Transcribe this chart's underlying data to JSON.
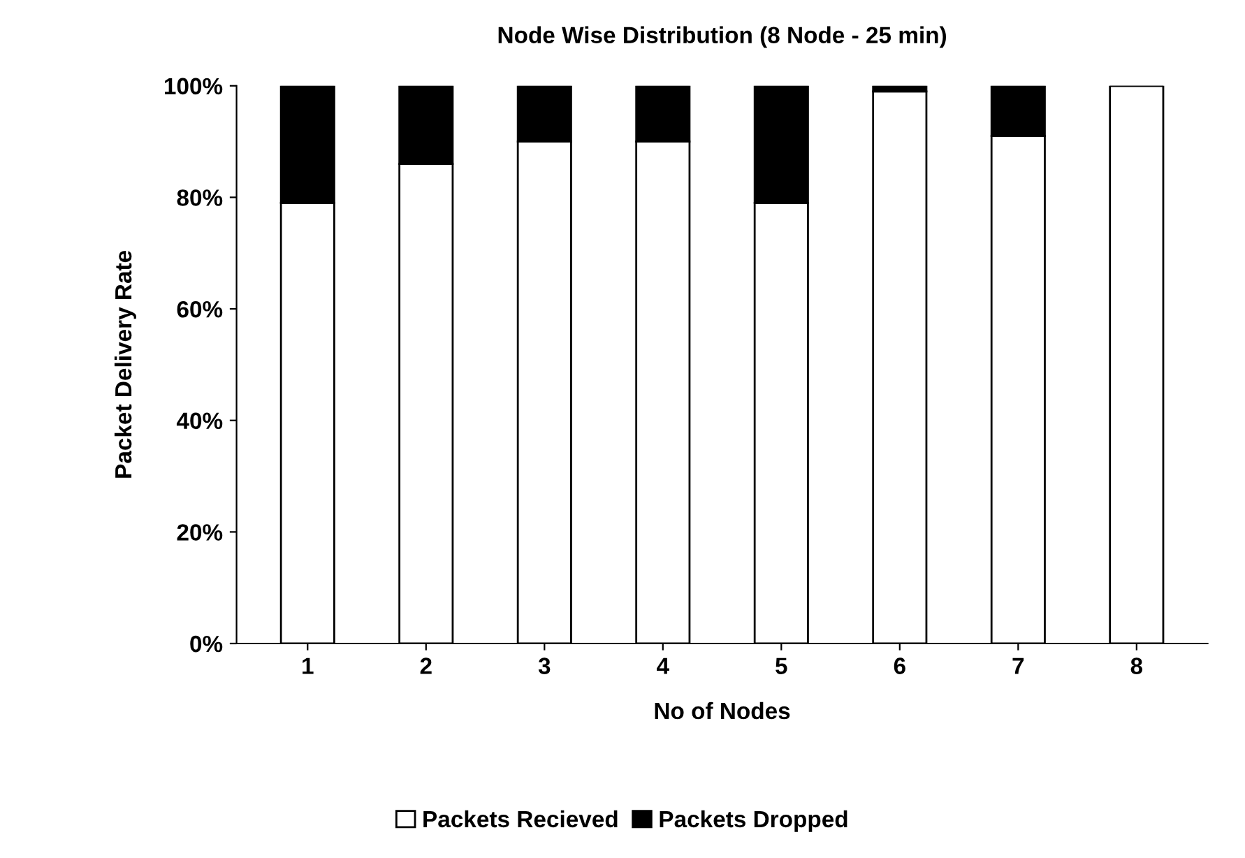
{
  "chart_data": {
    "type": "bar",
    "stacked": true,
    "title": "Node Wise Distribution (8 Node - 25 min)",
    "xlabel": "No of Nodes",
    "ylabel": "Packet Delivery Rate",
    "categories": [
      "1",
      "2",
      "3",
      "4",
      "5",
      "6",
      "7",
      "8"
    ],
    "series": [
      {
        "name": "Packets Recieved",
        "color": "#ffffff",
        "values": [
          79,
          86,
          90,
          90,
          79,
          99,
          91,
          100
        ]
      },
      {
        "name": "Packets Dropped",
        "color": "#000000",
        "values": [
          21,
          14,
          10,
          10,
          21,
          1,
          9,
          0
        ]
      }
    ],
    "ylim": [
      0,
      100
    ],
    "yticks": [
      {
        "value": 0,
        "label": "0%"
      },
      {
        "value": 20,
        "label": "20%"
      },
      {
        "value": 40,
        "label": "40%"
      },
      {
        "value": 60,
        "label": "60%"
      },
      {
        "value": 80,
        "label": "80%"
      },
      {
        "value": 100,
        "label": "100%"
      }
    ],
    "legend": "bottom",
    "grid": false
  }
}
